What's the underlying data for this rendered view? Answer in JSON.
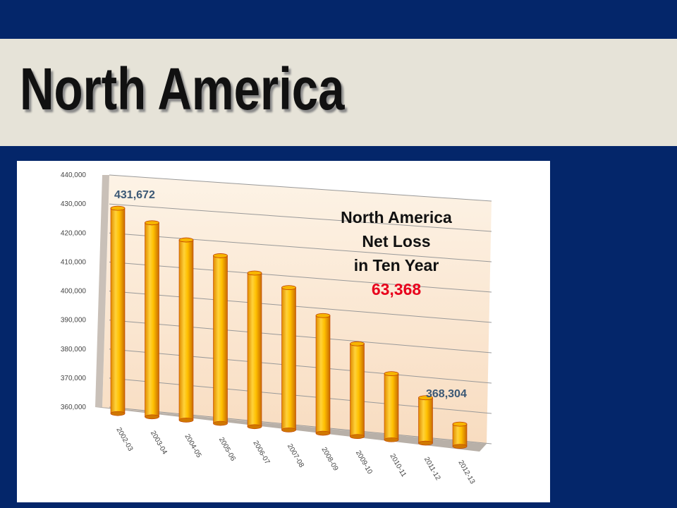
{
  "title": "North America",
  "chart_data": {
    "type": "bar",
    "categories": [
      "2002-03",
      "2003-04",
      "2004-05",
      "2005-06",
      "2006-07",
      "2007-08",
      "2008-09",
      "2009-10",
      "2010-11",
      "2011-12",
      "2012-13"
    ],
    "values": [
      431672,
      427500,
      422500,
      418000,
      413000,
      409000,
      400500,
      392000,
      383000,
      376000,
      368304
    ],
    "value_labels": [
      "431,672",
      null,
      null,
      null,
      null,
      null,
      null,
      null,
      null,
      null,
      "368,304"
    ],
    "color": "#f7b500",
    "ylim": [
      360000,
      440000
    ],
    "yticks": [
      {
        "value": 360000,
        "label": "360,000"
      },
      {
        "value": 370000,
        "label": "370,000"
      },
      {
        "value": 380000,
        "label": "380,000"
      },
      {
        "value": 390000,
        "label": "390,000"
      },
      {
        "value": 400000,
        "label": "400,000"
      },
      {
        "value": 410000,
        "label": "410,000"
      },
      {
        "value": 420000,
        "label": "420,000"
      },
      {
        "value": 430000,
        "label": "430,000"
      },
      {
        "value": 440000,
        "label": "440,000"
      }
    ],
    "grid": true,
    "annotation": {
      "lines": [
        "North America",
        "Net Loss",
        "in Ten Year"
      ],
      "highlight": "63,368"
    }
  }
}
